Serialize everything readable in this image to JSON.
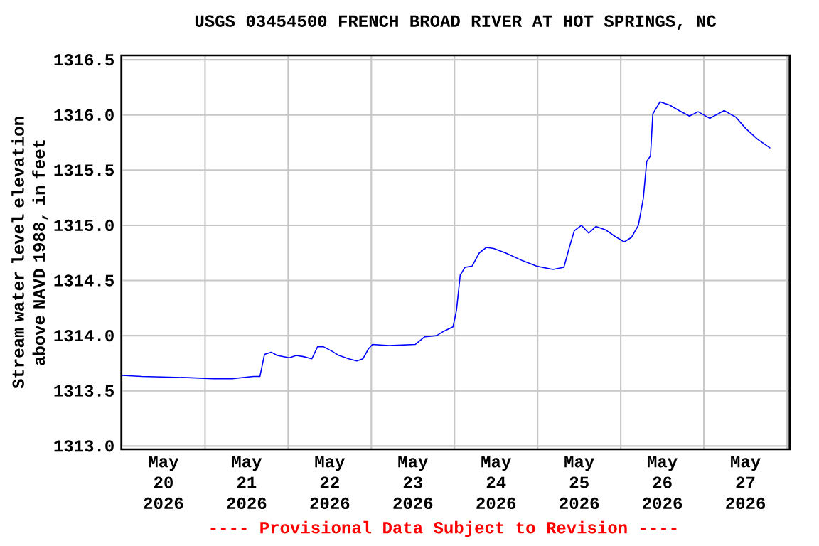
{
  "chart_data": {
    "type": "line",
    "title": "USGS 03454500 FRENCH BROAD RIVER AT HOT SPRINGS, NC",
    "ylabel": "Stream water level elevation above NAVD 1988, in feet",
    "annotations": [
      "---- Provisional Data Subject to Revision ----"
    ],
    "xlim": [
      "2026-05-19T23:50",
      "2026-05-28T00:45"
    ],
    "ylim": [
      1312.97,
      1316.54
    ],
    "yticks": [
      {
        "value": 1313.0,
        "label": "1313.0"
      },
      1313.5,
      {
        "value": 1314.0,
        "label": "1314.0"
      },
      1314.5,
      {
        "value": 1315.0,
        "label": "1315.0"
      },
      1315.5,
      {
        "value": 1316.0,
        "label": "1316.0"
      },
      1316.5
    ],
    "xticks": [
      {
        "value": "2026-05-20T00:00",
        "label": null
      },
      {
        "value": "2026-05-20T12:00",
        "label": "May 20 2026"
      },
      {
        "value": "2026-05-21T00:00",
        "label": null
      },
      {
        "value": "2026-05-21T12:00",
        "label": "May 21 2026"
      },
      {
        "value": "2026-05-22T00:00",
        "label": null
      },
      {
        "value": "2026-05-22T12:00",
        "label": "May 22 2026"
      },
      {
        "value": "2026-05-23T00:00",
        "label": null
      },
      {
        "value": "2026-05-23T12:00",
        "label": "May 23 2026"
      },
      {
        "value": "2026-05-24T00:00",
        "label": null
      },
      {
        "value": "2026-05-24T12:00",
        "label": "May 24 2026"
      },
      {
        "value": "2026-05-25T00:00",
        "label": null
      },
      {
        "value": "2026-05-25T12:00",
        "label": "May 25 2026"
      },
      {
        "value": "2026-05-26T00:00",
        "label": null
      },
      {
        "value": "2026-05-26T12:00",
        "label": "May 26 2026"
      },
      {
        "value": "2026-05-27T00:00",
        "label": null
      },
      {
        "value": "2026-05-27T12:00",
        "label": "May 27 2026"
      },
      {
        "value": "2026-05-28T00:00",
        "label": null
      }
    ],
    "grid": true,
    "marker": "none",
    "line_style": "solid",
    "series": [
      {
        "color": "#0000ff",
        "x": [
          "2026-05-20T00:00",
          "2026-05-20T05:45",
          "2026-05-20T18:50",
          "2026-05-21T02:20",
          "2026-05-21T07:50",
          "2026-05-21T14:00",
          "2026-05-21T15:50",
          "2026-05-21T17:10",
          "2026-05-21T19:05",
          "2026-05-21T20:50",
          "2026-05-22T00:20",
          "2026-05-22T02:20",
          "2026-05-22T04:25",
          "2026-05-22T06:50",
          "2026-05-22T08:30",
          "2026-05-22T10:10",
          "2026-05-22T12:35",
          "2026-05-22T14:40",
          "2026-05-22T17:30",
          "2026-05-22T19:50",
          "2026-05-22T21:35",
          "2026-05-22T23:10",
          "2026-05-23T00:20",
          "2026-05-23T05:05",
          "2026-05-23T12:40",
          "2026-05-23T15:25",
          "2026-05-23T18:50",
          "2026-05-23T20:55",
          "2026-05-23T23:35",
          "2026-05-24T00:35",
          "2026-05-24T01:40",
          "2026-05-24T03:05",
          "2026-05-24T05:05",
          "2026-05-24T07:10",
          "2026-05-24T09:15",
          "2026-05-24T11:20",
          "2026-05-24T14:45",
          "2026-05-24T19:35",
          "2026-05-24T23:40",
          "2026-05-25T04:25",
          "2026-05-25T07:35",
          "2026-05-25T09:15",
          "2026-05-25T10:35",
          "2026-05-25T12:40",
          "2026-05-25T14:45",
          "2026-05-25T16:50",
          "2026-05-25T19:35",
          "2026-05-25T22:20",
          "2026-05-26T01:00",
          "2026-05-26T03:05",
          "2026-05-26T05:05",
          "2026-05-26T06:30",
          "2026-05-26T07:30",
          "2026-05-26T08:35",
          "2026-05-26T09:15",
          "2026-05-26T11:20",
          "2026-05-26T14:05",
          "2026-05-26T16:50",
          "2026-05-26T19:50",
          "2026-05-26T22:20",
          "2026-05-27T01:40",
          "2026-05-27T05:50",
          "2026-05-27T09:15",
          "2026-05-27T12:00",
          "2026-05-27T15:30",
          "2026-05-27T19:10"
        ],
        "values": [
          1313.64,
          1313.63,
          1313.62,
          1313.61,
          1313.61,
          1313.63,
          1313.63,
          1313.83,
          1313.85,
          1313.82,
          1313.8,
          1313.82,
          1313.81,
          1313.79,
          1313.9,
          1313.9,
          1313.86,
          1313.82,
          1313.79,
          1313.77,
          1313.79,
          1313.88,
          1313.92,
          1313.91,
          1313.92,
          1313.99,
          1314.0,
          1314.04,
          1314.08,
          1314.23,
          1314.55,
          1314.62,
          1314.63,
          1314.75,
          1314.8,
          1314.79,
          1314.75,
          1314.68,
          1314.63,
          1314.6,
          1314.62,
          1314.81,
          1314.95,
          1315.0,
          1314.93,
          1314.99,
          1314.96,
          1314.9,
          1314.85,
          1314.89,
          1315.0,
          1315.24,
          1315.58,
          1315.63,
          1316.01,
          1316.12,
          1316.09,
          1316.04,
          1315.99,
          1316.03,
          1315.97,
          1316.04,
          1315.98,
          1315.88,
          1315.78,
          1315.7
        ]
      }
    ]
  }
}
